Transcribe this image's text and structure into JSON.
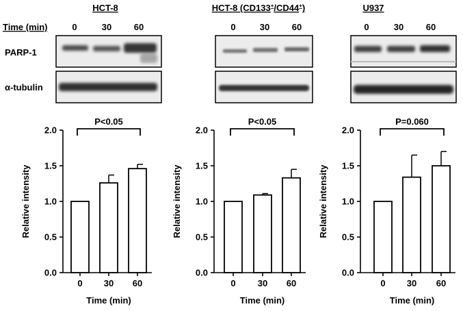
{
  "blots": {
    "time_row_label": "Time (min)",
    "blot_labels": [
      "PARP-1",
      "α-tubulin"
    ],
    "panels": [
      {
        "title": "HCT-8",
        "time_labels": [
          "0",
          "30",
          "60"
        ]
      },
      {
        "title_main": "HCT-8 (CD133",
        "title_sup1": "+",
        "title_mid": "/CD44",
        "title_sup2": "+",
        "title_end": ")",
        "time_labels": [
          "0",
          "30",
          "60"
        ]
      },
      {
        "title": "U937",
        "time_labels": [
          "0",
          "30",
          "60"
        ]
      }
    ]
  },
  "chart_data": [
    {
      "type": "bar",
      "categories": [
        "0",
        "30",
        "60"
      ],
      "values": [
        1.0,
        1.26,
        1.46
      ],
      "errors": [
        0,
        0.11,
        0.06
      ],
      "xlabel": "Time (min)",
      "ylabel": "Relative intensity",
      "ylim": [
        0,
        2.0
      ],
      "yticks": [
        "0.0",
        "0.5",
        "1.0",
        "1.5",
        "2.0"
      ],
      "significance": "P<0.05"
    },
    {
      "type": "bar",
      "categories": [
        "0",
        "30",
        "60"
      ],
      "values": [
        1.0,
        1.09,
        1.33
      ],
      "errors": [
        0,
        0.02,
        0.12
      ],
      "xlabel": "Time (min)",
      "ylabel": "Relative intensity",
      "ylim": [
        0,
        2.0
      ],
      "yticks": [
        "0.0",
        "0.5",
        "1.0",
        "1.5",
        "2.0"
      ],
      "significance": "P<0.05"
    },
    {
      "type": "bar",
      "categories": [
        "0",
        "30",
        "60"
      ],
      "values": [
        1.0,
        1.34,
        1.5
      ],
      "errors": [
        0,
        0.31,
        0.2
      ],
      "xlabel": "Time (min)",
      "ylabel": "Relative intensity",
      "ylim": [
        0,
        2.0
      ],
      "yticks": [
        "0.0",
        "0.5",
        "1.0",
        "1.5",
        "2.0"
      ],
      "significance": "P=0.060"
    }
  ]
}
